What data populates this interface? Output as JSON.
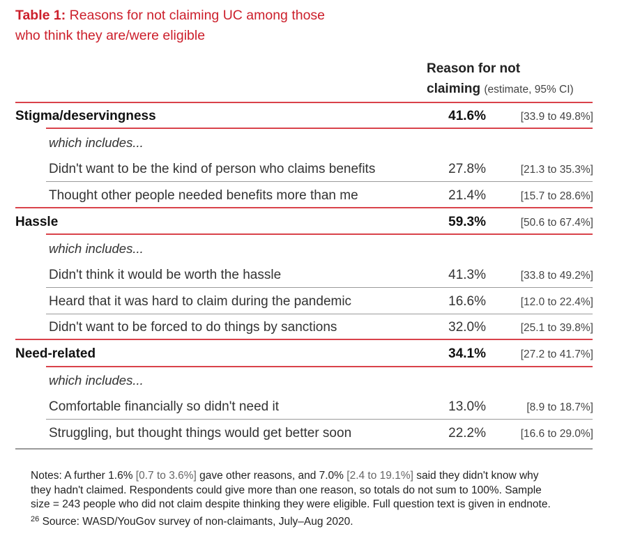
{
  "title": {
    "prefix": "Table 1:",
    "line1": "Reasons for not claiming UC among those",
    "line2": "who think they are/were eligible"
  },
  "header": {
    "line1": "Reason for not",
    "line2_bold": "claiming",
    "line2_sub": "(estimate, 95% CI)"
  },
  "rows": [
    {
      "label": "Stigma/deservingness",
      "estimate": "41.6%",
      "ci": "[33.9 to 49.8%]"
    },
    {
      "label": "which includes..."
    },
    {
      "label": "Didn't want to be the kind of person who claims benefits",
      "estimate": "27.8%",
      "ci": "[21.3 to 35.3%]"
    },
    {
      "label": "Thought other people needed benefits more than me",
      "estimate": "21.4%",
      "ci": "[15.7 to 28.6%]"
    },
    {
      "label": "Hassle",
      "estimate": "59.3%",
      "ci": "[50.6 to 67.4%]"
    },
    {
      "label": "which includes..."
    },
    {
      "label": "Didn't think it would be worth the hassle",
      "estimate": "41.3%",
      "ci": "[33.8 to 49.2%]"
    },
    {
      "label": "Heard that it was hard to claim during the pandemic",
      "estimate": "16.6%",
      "ci": "[12.0 to 22.4%]"
    },
    {
      "label": "Didn't want to be forced to do things by sanctions",
      "estimate": "32.0%",
      "ci": "[25.1 to 39.8%]"
    },
    {
      "label": "Need-related",
      "estimate": "34.1%",
      "ci": "[27.2 to 41.7%]"
    },
    {
      "label": "which includes..."
    },
    {
      "label": "Comfortable financially so didn't need it",
      "estimate": "13.0%",
      "ci": "[8.9 to 18.7%]"
    },
    {
      "label": "Struggling, but thought things would get better soon",
      "estimate": "22.2%",
      "ci": "[16.6 to 29.0%]"
    }
  ],
  "notes": {
    "t1": "Notes: A further 1.6%",
    "ci1": "[0.7 to 3.6%]",
    "t2": "gave other reasons, and 7.0%",
    "ci2": "[2.4 to 19.1%]",
    "t3": "said they didn't know why they hadn't claimed. Respondents could give more than one reason, so totals do not sum to 100%. Sample size = 243 people who did not claim despite thinking they were eligible. Full question text is given in endnote.",
    "endnote": "26",
    "t4": "Source: WASD/YouGov survey of non-claimants, July–Aug 2020."
  }
}
